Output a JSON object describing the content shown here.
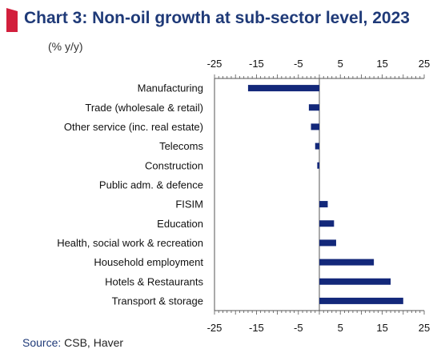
{
  "header": {
    "title": "Chart 3: Non-oil growth at sub-sector level, 2023",
    "unit_label": "(% y/y)"
  },
  "footer": {
    "source_label": "Source:",
    "source_text": "CSB, Haver"
  },
  "colors": {
    "bar": "#13287a",
    "title": "#1f3a78",
    "accent": "#d21f3c",
    "axis": "#555555"
  },
  "chart_data": {
    "type": "bar",
    "orientation": "horizontal",
    "title": "Chart 3: Non-oil growth at sub-sector level, 2023",
    "ylabel": "(% y/y)",
    "xlim": [
      -25,
      25
    ],
    "ticks": [
      -25,
      -15,
      -5,
      5,
      15,
      25
    ],
    "grid": false,
    "categories": [
      "Manufacturing",
      "Trade (wholesale & retail)",
      "Other service (inc. real estate)",
      "Telecoms",
      "Construction",
      "Public adm. & defence",
      "FISIM",
      "Education",
      "Health, social work & recreation",
      "Household employment",
      "Hotels & Restaurants",
      "Transport & storage"
    ],
    "values": [
      -17,
      -2.5,
      -2,
      -1,
      -0.5,
      0,
      2,
      3.5,
      4,
      13,
      17,
      20
    ]
  }
}
